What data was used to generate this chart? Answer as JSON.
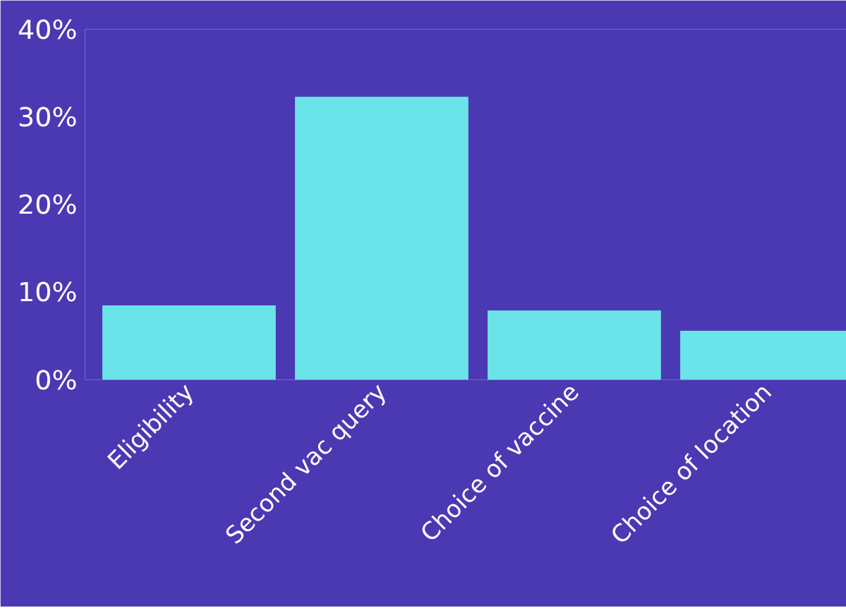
{
  "chart_data": {
    "type": "bar",
    "categories": [
      "Eligibility",
      "Second vac query",
      "Choice of vaccine",
      "Choice of location"
    ],
    "values": [
      8.5,
      32.3,
      7.9,
      5.6
    ],
    "color": "#6be4e9",
    "ylim": [
      0,
      40
    ],
    "yticks": [
      {
        "value": 0,
        "label": "0%"
      },
      {
        "value": 10,
        "label": "10%"
      },
      {
        "value": 20,
        "label": "20%"
      },
      {
        "value": 30,
        "label": "30%"
      },
      {
        "value": 40,
        "label": "40%"
      }
    ],
    "grid": false
  }
}
